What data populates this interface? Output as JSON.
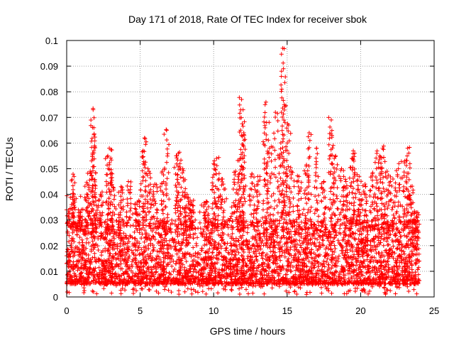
{
  "chart_data": {
    "type": "scatter",
    "title": "Day 171 of 2018, Rate Of TEC Index for receiver sbok",
    "xlabel": "GPS time / hours",
    "ylabel": "ROTI / TECUs",
    "xlim": [
      0,
      25
    ],
    "ylim": [
      0,
      0.1
    ],
    "xticks": [
      0,
      5,
      10,
      15,
      20,
      25
    ],
    "yticks": [
      0,
      0.01,
      0.02,
      0.03,
      0.04,
      0.05,
      0.06,
      0.07,
      0.08,
      0.09,
      0.1
    ],
    "xtick_labels": [
      "0",
      "5",
      "10",
      "15",
      "20",
      "25"
    ],
    "ytick_labels": [
      "0",
      "0.01",
      "0.02",
      "0.03",
      "0.04",
      "0.05",
      "0.06",
      "0.07",
      "0.08",
      "0.09",
      "0.1"
    ],
    "grid": true,
    "marker": "plus",
    "series_color": "#ff0000",
    "x_data_range": [
      0,
      24
    ],
    "baseline_range": [
      0.005,
      0.03
    ],
    "spikes": [
      {
        "x": 0.0,
        "y": 0.034
      },
      {
        "x": 0.4,
        "y": 0.039
      },
      {
        "x": 0.5,
        "y": 0.047
      },
      {
        "x": 0.9,
        "y": 0.033
      },
      {
        "x": 1.4,
        "y": 0.044
      },
      {
        "x": 1.6,
        "y": 0.049
      },
      {
        "x": 1.8,
        "y": 0.073
      },
      {
        "x": 1.85,
        "y": 0.066
      },
      {
        "x": 1.9,
        "y": 0.059
      },
      {
        "x": 2.3,
        "y": 0.04
      },
      {
        "x": 2.8,
        "y": 0.055
      },
      {
        "x": 2.9,
        "y": 0.058
      },
      {
        "x": 3.1,
        "y": 0.048
      },
      {
        "x": 3.7,
        "y": 0.043
      },
      {
        "x": 4.2,
        "y": 0.045
      },
      {
        "x": 4.8,
        "y": 0.037
      },
      {
        "x": 5.2,
        "y": 0.057
      },
      {
        "x": 5.3,
        "y": 0.062
      },
      {
        "x": 5.6,
        "y": 0.049
      },
      {
        "x": 6.0,
        "y": 0.044
      },
      {
        "x": 6.5,
        "y": 0.049
      },
      {
        "x": 6.8,
        "y": 0.065
      },
      {
        "x": 7.5,
        "y": 0.055
      },
      {
        "x": 7.6,
        "y": 0.056
      },
      {
        "x": 7.9,
        "y": 0.05
      },
      {
        "x": 8.2,
        "y": 0.04
      },
      {
        "x": 8.5,
        "y": 0.037
      },
      {
        "x": 9.5,
        "y": 0.037
      },
      {
        "x": 10.0,
        "y": 0.052
      },
      {
        "x": 10.2,
        "y": 0.054
      },
      {
        "x": 10.6,
        "y": 0.046
      },
      {
        "x": 11.5,
        "y": 0.049
      },
      {
        "x": 11.8,
        "y": 0.054
      },
      {
        "x": 11.9,
        "y": 0.077
      },
      {
        "x": 12.0,
        "y": 0.073
      },
      {
        "x": 12.05,
        "y": 0.064
      },
      {
        "x": 12.6,
        "y": 0.048
      },
      {
        "x": 13.0,
        "y": 0.047
      },
      {
        "x": 13.5,
        "y": 0.075
      },
      {
        "x": 13.6,
        "y": 0.068
      },
      {
        "x": 13.8,
        "y": 0.058
      },
      {
        "x": 14.2,
        "y": 0.072
      },
      {
        "x": 14.6,
        "y": 0.056
      },
      {
        "x": 14.7,
        "y": 0.097
      },
      {
        "x": 14.75,
        "y": 0.089
      },
      {
        "x": 14.8,
        "y": 0.075
      },
      {
        "x": 15.1,
        "y": 0.067
      },
      {
        "x": 15.3,
        "y": 0.049
      },
      {
        "x": 15.8,
        "y": 0.047
      },
      {
        "x": 16.3,
        "y": 0.051
      },
      {
        "x": 16.5,
        "y": 0.064
      },
      {
        "x": 17.0,
        "y": 0.058
      },
      {
        "x": 17.5,
        "y": 0.045
      },
      {
        "x": 18.0,
        "y": 0.069
      },
      {
        "x": 18.05,
        "y": 0.063
      },
      {
        "x": 18.3,
        "y": 0.055
      },
      {
        "x": 18.7,
        "y": 0.05
      },
      {
        "x": 19.0,
        "y": 0.045
      },
      {
        "x": 19.4,
        "y": 0.054
      },
      {
        "x": 19.5,
        "y": 0.057
      },
      {
        "x": 19.9,
        "y": 0.047
      },
      {
        "x": 20.3,
        "y": 0.044
      },
      {
        "x": 20.8,
        "y": 0.048
      },
      {
        "x": 21.1,
        "y": 0.056
      },
      {
        "x": 21.3,
        "y": 0.055
      },
      {
        "x": 21.5,
        "y": 0.058
      },
      {
        "x": 21.8,
        "y": 0.049
      },
      {
        "x": 22.2,
        "y": 0.046
      },
      {
        "x": 22.6,
        "y": 0.052
      },
      {
        "x": 23.0,
        "y": 0.053
      },
      {
        "x": 23.2,
        "y": 0.058
      },
      {
        "x": 23.4,
        "y": 0.043
      },
      {
        "x": 23.8,
        "y": 0.033
      }
    ]
  }
}
